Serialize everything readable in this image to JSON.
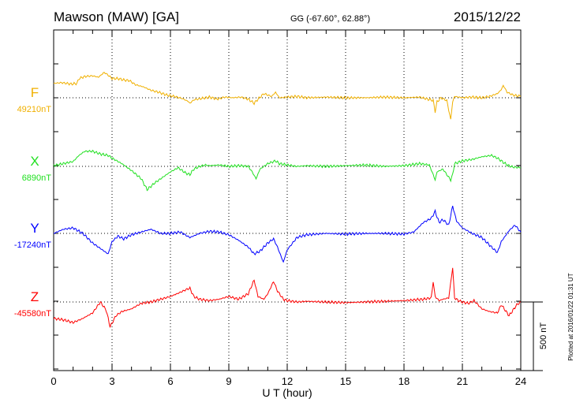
{
  "header": {
    "station": "Mawson (MAW)  [GA]",
    "coords": "GG (-67.60°,  62.88°)",
    "date": "2015/12/22"
  },
  "footer": {
    "plotted_note": "Plotted at 2016/01/22 01:31  UT",
    "scale_label": "500 nT"
  },
  "chart_data": {
    "type": "line",
    "xlabel": "U T (hour)",
    "xlim": [
      0,
      24
    ],
    "xticks": [
      0,
      3,
      6,
      9,
      12,
      15,
      18,
      21,
      24
    ],
    "scale_bar_nT": 500,
    "grid": true,
    "series": [
      {
        "name": "F",
        "baseline_label": "49210nT",
        "color": "#f0b000",
        "x": [
          0,
          0.4,
          0.9,
          1.2,
          1.3,
          1.6,
          2.0,
          2.3,
          2.6,
          2.8,
          3.0,
          3.3,
          3.6,
          3.9,
          4.2,
          4.6,
          5.0,
          5.4,
          5.8,
          6.2,
          6.6,
          6.9,
          7.0,
          7.2,
          7.6,
          8.0,
          8.4,
          8.8,
          9.2,
          9.6,
          10.0,
          10.3,
          10.5,
          10.8,
          11.2,
          11.4,
          11.6,
          12.0,
          12.5,
          13.0,
          14.0,
          15.0,
          16.0,
          17.0,
          18.0,
          18.8,
          19.5,
          19.6,
          19.7,
          19.9,
          20.2,
          20.4,
          20.5,
          20.6,
          20.8,
          21.0,
          21.5,
          22.0,
          22.4,
          22.8,
          23.0,
          23.1,
          23.3,
          23.6,
          24
        ],
        "values": [
          105,
          110,
          100,
          105,
          140,
          155,
          160,
          150,
          185,
          165,
          140,
          140,
          130,
          125,
          95,
          80,
          55,
          40,
          20,
          10,
          -5,
          -25,
          -40,
          -15,
          -5,
          5,
          -10,
          5,
          0,
          5,
          -10,
          -40,
          -10,
          30,
          10,
          40,
          0,
          5,
          10,
          0,
          5,
          0,
          0,
          5,
          0,
          5,
          -20,
          -100,
          -30,
          0,
          -20,
          -160,
          -30,
          10,
          5,
          0,
          5,
          0,
          10,
          30,
          60,
          90,
          40,
          20,
          10
        ]
      },
      {
        "name": "X",
        "baseline_label": "6890nT",
        "color": "#20e020",
        "x": [
          0,
          0.5,
          1.0,
          1.3,
          1.6,
          2.0,
          2.4,
          2.8,
          3.0,
          3.5,
          4.0,
          4.5,
          4.8,
          5.2,
          5.6,
          6.0,
          6.4,
          6.8,
          7.0,
          7.2,
          7.5,
          7.8,
          8.0,
          8.5,
          9.0,
          9.5,
          10.0,
          10.2,
          10.4,
          10.6,
          11.0,
          11.4,
          11.6,
          12.0,
          12.5,
          13.0,
          14.0,
          15.0,
          16.0,
          17.0,
          18.0,
          18.8,
          19.3,
          19.5,
          19.6,
          19.7,
          20.0,
          20.4,
          20.5,
          20.6,
          21.0,
          21.5,
          22.0,
          22.5,
          22.8,
          23.0,
          23.3,
          23.6,
          24
        ],
        "values": [
          5,
          20,
          35,
          80,
          110,
          110,
          90,
          80,
          60,
          20,
          -30,
          -90,
          -170,
          -120,
          -80,
          -40,
          -10,
          -50,
          -60,
          -20,
          0,
          10,
          5,
          10,
          0,
          5,
          0,
          -40,
          -90,
          -20,
          20,
          40,
          20,
          10,
          0,
          5,
          0,
          5,
          10,
          0,
          5,
          20,
          10,
          -60,
          -100,
          -40,
          -20,
          -100,
          -60,
          20,
          40,
          50,
          70,
          80,
          60,
          40,
          10,
          -5,
          -10
        ]
      },
      {
        "name": "Y",
        "baseline_label": "-17240nT",
        "color": "#0000ff",
        "x": [
          0,
          0.5,
          1.0,
          1.5,
          2.0,
          2.4,
          2.8,
          3.0,
          3.3,
          3.6,
          4.0,
          4.5,
          5.0,
          5.5,
          6.0,
          6.5,
          7.0,
          7.5,
          8.0,
          8.5,
          9.0,
          9.5,
          10.0,
          10.3,
          10.6,
          11.0,
          11.3,
          11.5,
          11.8,
          12.0,
          12.5,
          13.0,
          14.0,
          15.0,
          16.0,
          17.0,
          18.0,
          18.5,
          19.0,
          19.4,
          19.6,
          19.8,
          20.0,
          20.3,
          20.5,
          20.7,
          21.0,
          21.5,
          22.0,
          22.5,
          22.8,
          23.0,
          23.4,
          23.7,
          24
        ],
        "values": [
          0,
          30,
          40,
          0,
          -70,
          -110,
          -150,
          -60,
          -20,
          -40,
          -10,
          10,
          30,
          0,
          0,
          10,
          -30,
          0,
          15,
          10,
          -10,
          -50,
          -100,
          -150,
          -130,
          -70,
          -40,
          -100,
          -210,
          -120,
          -30,
          -10,
          0,
          -5,
          0,
          0,
          -5,
          10,
          80,
          110,
          160,
          80,
          100,
          60,
          200,
          90,
          40,
          0,
          -30,
          -100,
          -140,
          -60,
          20,
          60,
          10
        ]
      },
      {
        "name": "Z",
        "baseline_label": "-45580nT",
        "color": "#ff0000",
        "x": [
          0,
          0.5,
          1.0,
          1.5,
          2.0,
          2.4,
          2.7,
          2.9,
          3.2,
          3.5,
          4.0,
          4.5,
          5.0,
          5.5,
          6.0,
          6.5,
          6.8,
          7.0,
          7.2,
          7.5,
          8.0,
          8.5,
          9.0,
          9.5,
          10.0,
          10.3,
          10.5,
          10.8,
          11.0,
          11.3,
          11.5,
          11.8,
          12.0,
          12.5,
          13.0,
          14.0,
          15.0,
          16.0,
          17.0,
          18.0,
          19.0,
          19.4,
          19.5,
          19.6,
          19.8,
          20.0,
          20.3,
          20.5,
          20.6,
          20.8,
          21.0,
          21.3,
          21.6,
          22.0,
          22.4,
          22.8,
          23.0,
          23.4,
          23.8,
          24
        ],
        "values": [
          -120,
          -130,
          -150,
          -120,
          -80,
          0,
          -60,
          -180,
          -100,
          -70,
          -50,
          -10,
          0,
          20,
          40,
          70,
          90,
          100,
          40,
          20,
          10,
          20,
          40,
          20,
          60,
          160,
          40,
          20,
          60,
          150,
          80,
          20,
          10,
          0,
          5,
          0,
          -5,
          0,
          5,
          10,
          20,
          30,
          150,
          40,
          10,
          20,
          30,
          250,
          30,
          10,
          0,
          -10,
          10,
          -50,
          -70,
          -80,
          -20,
          -100,
          -20,
          0
        ]
      }
    ]
  }
}
